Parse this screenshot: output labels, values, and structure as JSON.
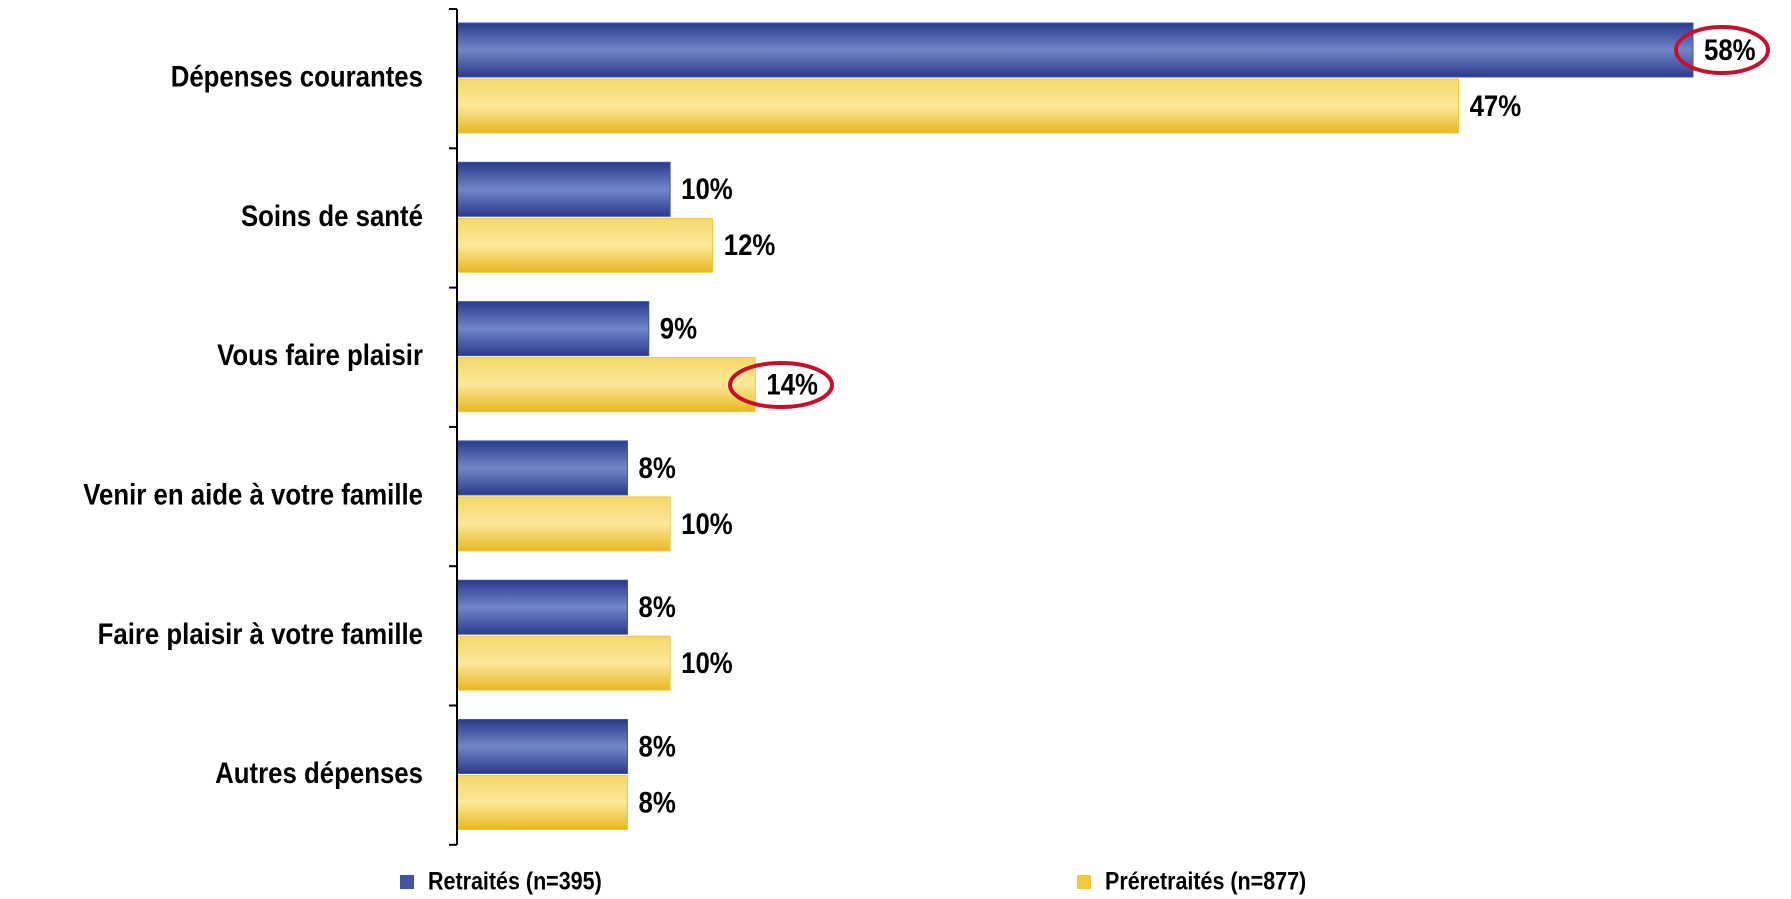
{
  "chart_data": {
    "type": "bar",
    "orientation": "horizontal",
    "categories": [
      "Dépenses courantes",
      "Soins de santé",
      "Vous faire plaisir",
      "Venir en aide à votre famille",
      "Faire plaisir à votre famille",
      "Autres dépenses"
    ],
    "series": [
      {
        "name": "Retraités (n=395)",
        "color": "#3f55a8",
        "values": [
          58,
          10,
          9,
          8,
          8,
          8
        ],
        "value_labels": [
          "58%",
          "10%",
          "9%",
          "8%",
          "8%",
          "8%"
        ]
      },
      {
        "name": "Préretraités (n=877)",
        "color": "#f2c93a",
        "values": [
          47,
          12,
          14,
          10,
          10,
          8
        ],
        "value_labels": [
          "47%",
          "12%",
          "14%",
          "10%",
          "10%",
          "8%"
        ]
      }
    ],
    "legend": "bottom"
  }
}
